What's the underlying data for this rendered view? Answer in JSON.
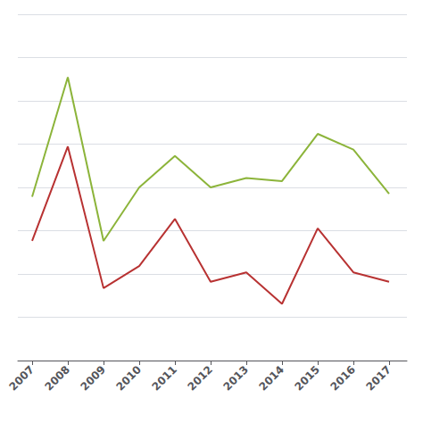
{
  "chart_data": {
    "type": "line",
    "x": [
      2007,
      2008,
      2009,
      2010,
      2011,
      2012,
      2013,
      2014,
      2015,
      2016,
      2017
    ],
    "series": [
      {
        "color": "#8CB43A",
        "values": [
          52,
          90,
          38,
          55,
          65,
          55,
          58,
          57,
          72,
          67,
          53
        ]
      },
      {
        "color": "#B83232",
        "values": [
          38,
          68,
          23,
          30,
          45,
          25,
          28,
          18,
          42,
          28,
          25
        ]
      }
    ],
    "xlim": [
      2006.6,
      2017.5
    ],
    "xticks": [
      2007,
      2008,
      2009,
      2010,
      2011,
      2012,
      2013,
      2014,
      2015,
      2016,
      2017
    ],
    "ylim": [
      0,
      110
    ],
    "yticks": [
      0,
      13.75,
      27.5,
      41.25,
      55,
      68.75,
      82.5,
      96.25,
      110
    ],
    "grid": true,
    "tick_labels": "x"
  }
}
